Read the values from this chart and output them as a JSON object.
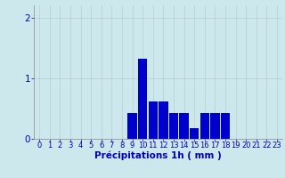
{
  "hours": [
    0,
    1,
    2,
    3,
    4,
    5,
    6,
    7,
    8,
    9,
    10,
    11,
    12,
    13,
    14,
    15,
    16,
    17,
    18,
    19,
    20,
    21,
    22,
    23
  ],
  "values": [
    0,
    0,
    0,
    0,
    0,
    0,
    0,
    0,
    0,
    0.42,
    1.32,
    0.62,
    0.62,
    0.42,
    0.42,
    0.18,
    0.42,
    0.42,
    0.42,
    0,
    0,
    0,
    0,
    0
  ],
  "bar_color": "#0000cc",
  "background_color": "#cce8ec",
  "grid_color": "#aaaaaa",
  "xlabel": "Précipitations 1h ( mm )",
  "xlabel_color": "#0000bb",
  "ylim": [
    0,
    2.2
  ],
  "yticks": [
    0,
    1,
    2
  ],
  "tick_color": "#0000bb",
  "tick_fontsize": 6.0,
  "xlabel_fontsize": 7.5
}
